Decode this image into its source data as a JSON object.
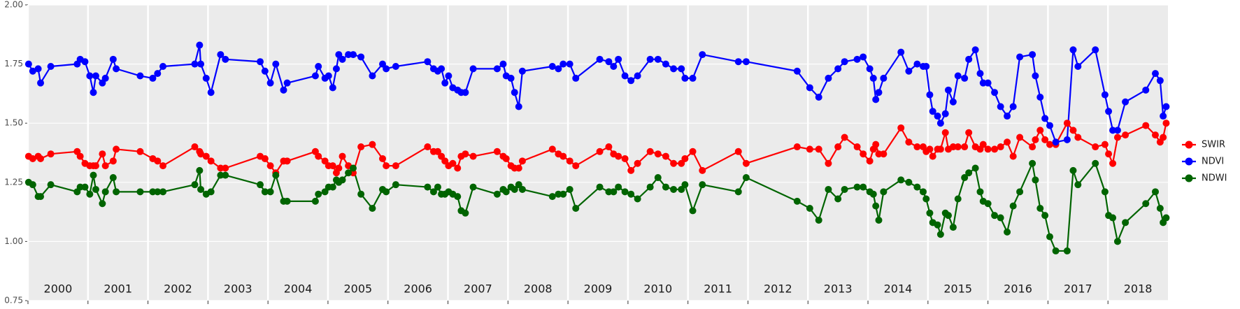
{
  "chart_data": {
    "type": "line",
    "x": [
      2000.01,
      2000.08,
      2000.17,
      2000.21,
      2000.38,
      2000.82,
      2000.87,
      2000.95,
      2001.03,
      2001.09,
      2001.13,
      2001.24,
      2001.29,
      2001.42,
      2001.47,
      2001.87,
      2002.08,
      2002.16,
      2002.25,
      2002.78,
      2002.86,
      2002.88,
      2002.97,
      2003.05,
      2003.21,
      2003.29,
      2003.87,
      2003.95,
      2004.04,
      2004.13,
      2004.26,
      2004.32,
      2004.79,
      2004.84,
      2004.95,
      2005.01,
      2005.08,
      2005.14,
      2005.18,
      2005.24,
      2005.34,
      2005.42,
      2005.55,
      2005.74,
      2005.91,
      2005.97,
      2006.13,
      2006.66,
      2006.76,
      2006.83,
      2006.89,
      2006.95,
      2007.01,
      2007.08,
      2007.16,
      2007.22,
      2007.29,
      2007.42,
      2007.82,
      2007.92,
      2007.97,
      2008.05,
      2008.11,
      2008.18,
      2008.24,
      2008.74,
      2008.84,
      2008.92,
      2009.03,
      2009.13,
      2009.53,
      2009.68,
      2009.76,
      2009.84,
      2009.95,
      2010.05,
      2010.16,
      2010.37,
      2010.5,
      2010.63,
      2010.76,
      2010.89,
      2010.95,
      2011.08,
      2011.24,
      2011.84,
      2011.97,
      2012.82,
      2013.03,
      2013.18,
      2013.34,
      2013.5,
      2013.61,
      2013.82,
      2013.92,
      2014.03,
      2014.09,
      2014.13,
      2014.18,
      2014.26,
      2014.55,
      2014.68,
      2014.82,
      2014.92,
      2014.97,
      2015.03,
      2015.08,
      2015.16,
      2015.21,
      2015.29,
      2015.34,
      2015.42,
      2015.5,
      2015.61,
      2015.68,
      2015.79,
      2015.87,
      2015.92,
      2016.0,
      2016.11,
      2016.21,
      2016.32,
      2016.42,
      2016.53,
      2016.74,
      2016.79,
      2016.87,
      2016.95,
      2017.03,
      2017.13,
      2017.32,
      2017.42,
      2017.5,
      2017.79,
      2017.95,
      2018.01,
      2018.08,
      2018.16,
      2018.29,
      2018.63,
      2018.79,
      2018.87,
      2018.92,
      2018.97
    ],
    "series": [
      {
        "name": "SWIR",
        "color": "#ff0000",
        "values": [
          1.36,
          1.35,
          1.36,
          1.35,
          1.37,
          1.38,
          1.36,
          1.33,
          1.32,
          1.32,
          1.32,
          1.37,
          1.32,
          1.34,
          1.39,
          1.38,
          1.35,
          1.34,
          1.32,
          1.4,
          1.38,
          1.37,
          1.36,
          1.34,
          1.31,
          1.31,
          1.36,
          1.35,
          1.32,
          1.29,
          1.34,
          1.34,
          1.38,
          1.36,
          1.34,
          1.32,
          1.32,
          1.29,
          1.31,
          1.36,
          1.32,
          1.29,
          1.4,
          1.41,
          1.35,
          1.32,
          1.32,
          1.4,
          1.38,
          1.38,
          1.36,
          1.34,
          1.32,
          1.33,
          1.31,
          1.36,
          1.37,
          1.36,
          1.38,
          1.36,
          1.35,
          1.32,
          1.31,
          1.31,
          1.34,
          1.39,
          1.37,
          1.36,
          1.34,
          1.32,
          1.38,
          1.4,
          1.37,
          1.36,
          1.35,
          1.3,
          1.33,
          1.38,
          1.37,
          1.36,
          1.33,
          1.33,
          1.35,
          1.38,
          1.3,
          1.38,
          1.33,
          1.4,
          1.39,
          1.39,
          1.33,
          1.4,
          1.44,
          1.4,
          1.37,
          1.34,
          1.39,
          1.41,
          1.37,
          1.37,
          1.48,
          1.42,
          1.4,
          1.4,
          1.38,
          1.39,
          1.36,
          1.39,
          1.39,
          1.46,
          1.39,
          1.4,
          1.4,
          1.4,
          1.46,
          1.4,
          1.39,
          1.41,
          1.39,
          1.39,
          1.4,
          1.42,
          1.36,
          1.44,
          1.4,
          1.43,
          1.47,
          1.43,
          1.41,
          1.41,
          1.5,
          1.47,
          1.44,
          1.4,
          1.41,
          1.37,
          1.33,
          1.44,
          1.45,
          1.49,
          1.45,
          1.42,
          1.44,
          1.5
        ]
      },
      {
        "name": "NDVI",
        "color": "#0000ff",
        "values": [
          1.75,
          1.72,
          1.73,
          1.67,
          1.74,
          1.75,
          1.77,
          1.76,
          1.7,
          1.63,
          1.7,
          1.67,
          1.69,
          1.77,
          1.73,
          1.7,
          1.69,
          1.71,
          1.74,
          1.75,
          1.83,
          1.75,
          1.69,
          1.63,
          1.79,
          1.77,
          1.76,
          1.72,
          1.67,
          1.75,
          1.64,
          1.67,
          1.7,
          1.74,
          1.69,
          1.7,
          1.65,
          1.73,
          1.79,
          1.77,
          1.79,
          1.79,
          1.78,
          1.7,
          1.75,
          1.73,
          1.74,
          1.76,
          1.73,
          1.72,
          1.73,
          1.67,
          1.7,
          1.65,
          1.64,
          1.63,
          1.63,
          1.73,
          1.73,
          1.75,
          1.7,
          1.69,
          1.63,
          1.57,
          1.72,
          1.74,
          1.73,
          1.75,
          1.75,
          1.69,
          1.77,
          1.76,
          1.74,
          1.77,
          1.7,
          1.68,
          1.7,
          1.77,
          1.77,
          1.75,
          1.73,
          1.73,
          1.69,
          1.69,
          1.79,
          1.76,
          1.76,
          1.72,
          1.65,
          1.61,
          1.69,
          1.73,
          1.76,
          1.77,
          1.78,
          1.73,
          1.69,
          1.6,
          1.63,
          1.69,
          1.8,
          1.72,
          1.75,
          1.74,
          1.74,
          1.62,
          1.55,
          1.53,
          1.5,
          1.54,
          1.64,
          1.59,
          1.7,
          1.69,
          1.77,
          1.81,
          1.71,
          1.67,
          1.67,
          1.63,
          1.57,
          1.53,
          1.57,
          1.78,
          1.79,
          1.7,
          1.61,
          1.52,
          1.49,
          1.42,
          1.43,
          1.81,
          1.74,
          1.81,
          1.62,
          1.55,
          1.47,
          1.47,
          1.59,
          1.64,
          1.71,
          1.68,
          1.53,
          1.57
        ]
      },
      {
        "name": "NDWI",
        "color": "#006400",
        "values": [
          1.25,
          1.24,
          1.19,
          1.19,
          1.24,
          1.21,
          1.23,
          1.23,
          1.2,
          1.28,
          1.22,
          1.16,
          1.21,
          1.27,
          1.21,
          1.21,
          1.21,
          1.21,
          1.21,
          1.24,
          1.3,
          1.22,
          1.2,
          1.21,
          1.28,
          1.28,
          1.24,
          1.21,
          1.21,
          1.28,
          1.17,
          1.17,
          1.17,
          1.2,
          1.21,
          1.23,
          1.23,
          1.26,
          1.25,
          1.26,
          1.29,
          1.31,
          1.2,
          1.14,
          1.22,
          1.21,
          1.24,
          1.23,
          1.21,
          1.23,
          1.2,
          1.2,
          1.21,
          1.2,
          1.19,
          1.13,
          1.12,
          1.23,
          1.2,
          1.22,
          1.21,
          1.23,
          1.22,
          1.24,
          1.22,
          1.19,
          1.2,
          1.2,
          1.22,
          1.14,
          1.23,
          1.21,
          1.21,
          1.23,
          1.21,
          1.2,
          1.18,
          1.23,
          1.27,
          1.23,
          1.22,
          1.22,
          1.24,
          1.13,
          1.24,
          1.21,
          1.27,
          1.17,
          1.14,
          1.09,
          1.22,
          1.18,
          1.22,
          1.23,
          1.23,
          1.21,
          1.2,
          1.15,
          1.09,
          1.21,
          1.26,
          1.25,
          1.23,
          1.21,
          1.18,
          1.12,
          1.08,
          1.07,
          1.03,
          1.12,
          1.11,
          1.06,
          1.18,
          1.27,
          1.29,
          1.31,
          1.21,
          1.17,
          1.16,
          1.11,
          1.1,
          1.04,
          1.15,
          1.21,
          1.33,
          1.26,
          1.14,
          1.11,
          1.02,
          0.96,
          0.96,
          1.3,
          1.24,
          1.33,
          1.21,
          1.11,
          1.1,
          1.0,
          1.08,
          1.16,
          1.21,
          1.14,
          1.08,
          1.1
        ]
      }
    ],
    "xlim": [
      2000,
      2019
    ],
    "xticks": [
      {
        "value": 2000,
        "label": "2000"
      },
      {
        "value": 2001,
        "label": "2001"
      },
      {
        "value": 2002,
        "label": "2002"
      },
      {
        "value": 2003,
        "label": "2003"
      },
      {
        "value": 2004,
        "label": "2004"
      },
      {
        "value": 2005,
        "label": "2005"
      },
      {
        "value": 2006,
        "label": "2006"
      },
      {
        "value": 2007,
        "label": "2007"
      },
      {
        "value": 2008,
        "label": "2008"
      },
      {
        "value": 2009,
        "label": "2009"
      },
      {
        "value": 2010,
        "label": "2010"
      },
      {
        "value": 2011,
        "label": "2011"
      },
      {
        "value": 2012,
        "label": "2012"
      },
      {
        "value": 2013,
        "label": "2013"
      },
      {
        "value": 2014,
        "label": "2014"
      },
      {
        "value": 2015,
        "label": "2015"
      },
      {
        "value": 2016,
        "label": "2016"
      },
      {
        "value": 2017,
        "label": "2017"
      },
      {
        "value": 2018,
        "label": "2018"
      }
    ],
    "ylim": [
      0.75,
      2.0
    ],
    "yticks": [
      0.75,
      {
        "value": 1,
        "label": "1.00"
      },
      1.25,
      {
        "value": 1.5,
        "label": "1.50"
      },
      1.75,
      {
        "value": 2,
        "label": "2.00"
      }
    ],
    "grid": true,
    "legend": "right"
  }
}
